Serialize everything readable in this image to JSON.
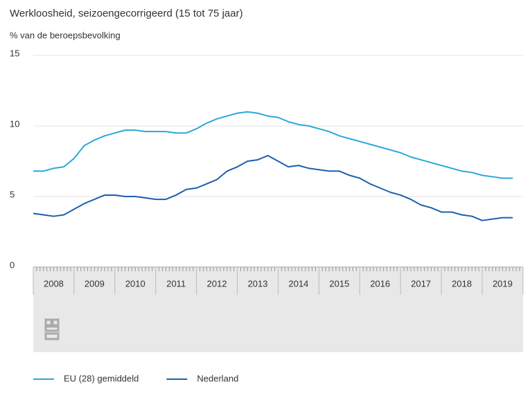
{
  "chart_data": {
    "type": "line",
    "title": "Werkloosheid, seizoengecorrigeerd (15 tot 75 jaar)",
    "y_label": "% van de beroepsbevolking",
    "categories": [
      "2008",
      "2009",
      "2010",
      "2011",
      "2012",
      "2013",
      "2014",
      "2015",
      "2016",
      "2017",
      "2018",
      "2019"
    ],
    "x": [
      2008,
      2008.25,
      2008.5,
      2008.75,
      2009,
      2009.25,
      2009.5,
      2009.75,
      2010,
      2010.25,
      2010.5,
      2010.75,
      2011,
      2011.25,
      2011.5,
      2011.75,
      2012,
      2012.25,
      2012.5,
      2012.75,
      2013,
      2013.25,
      2013.5,
      2013.75,
      2014,
      2014.25,
      2014.5,
      2014.75,
      2015,
      2015.25,
      2015.5,
      2015.75,
      2016,
      2016.25,
      2016.5,
      2016.75,
      2017,
      2017.25,
      2017.5,
      2017.75,
      2018,
      2018.25,
      2018.5,
      2018.75,
      2019,
      2019.25,
      2019.5,
      2019.75
    ],
    "xlim": [
      2008,
      2020
    ],
    "ylim": [
      0,
      15
    ],
    "yticks": [
      0,
      5,
      10,
      15
    ],
    "grid": true,
    "legend": "bottom",
    "series": [
      {
        "name": "EU (28) gemiddeld",
        "color": "#29a8d8",
        "values": [
          6.8,
          6.8,
          7.0,
          7.1,
          7.7,
          8.6,
          9.0,
          9.3,
          9.5,
          9.7,
          9.7,
          9.6,
          9.6,
          9.6,
          9.5,
          9.5,
          9.8,
          10.2,
          10.5,
          10.7,
          10.9,
          11.0,
          10.9,
          10.7,
          10.6,
          10.3,
          10.1,
          10.0,
          9.8,
          9.6,
          9.3,
          9.1,
          8.9,
          8.7,
          8.5,
          8.3,
          8.1,
          7.8,
          7.6,
          7.4,
          7.2,
          7.0,
          6.8,
          6.7,
          6.5,
          6.4,
          6.3,
          6.3
        ]
      },
      {
        "name": "Nederland",
        "color": "#1b5fad",
        "values": [
          3.8,
          3.7,
          3.6,
          3.7,
          4.1,
          4.5,
          4.8,
          5.1,
          5.1,
          5.0,
          5.0,
          4.9,
          4.8,
          4.8,
          5.1,
          5.5,
          5.6,
          5.9,
          6.2,
          6.8,
          7.1,
          7.5,
          7.6,
          7.9,
          7.5,
          7.1,
          7.2,
          7.0,
          6.9,
          6.8,
          6.8,
          6.5,
          6.3,
          5.9,
          5.6,
          5.3,
          5.1,
          4.8,
          4.4,
          4.2,
          3.9,
          3.9,
          3.7,
          3.6,
          3.3,
          3.4,
          3.5,
          3.5
        ]
      }
    ]
  }
}
